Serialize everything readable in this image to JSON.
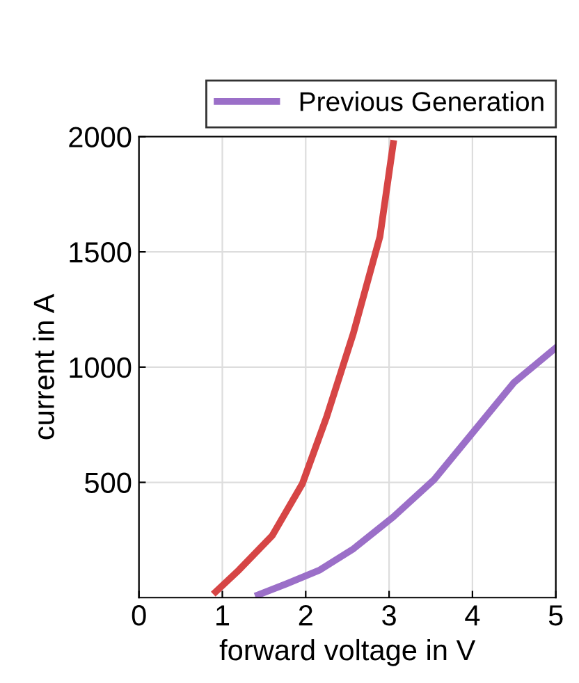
{
  "chart_data": {
    "type": "line",
    "xlabel": "forward voltage in V",
    "ylabel": "current in A",
    "xlim": [
      0,
      5
    ],
    "xticks": [
      0,
      1,
      2,
      3,
      4,
      5
    ],
    "ylim": [
      0,
      2000
    ],
    "yticks": [
      500,
      1000,
      1500,
      2000
    ],
    "grid": true,
    "legend": "top right",
    "marker": "none",
    "line_style": "solid",
    "series": [
      {
        "name": "Previous Generation",
        "color": "#9b6fc8",
        "x": [
          1.43,
          1.77,
          2.17,
          2.57,
          3.05,
          3.54,
          4.02,
          4.5,
          5.0
        ],
        "values": [
          12,
          60,
          120,
          211,
          350,
          512,
          723,
          934,
          1084
        ]
      },
      {
        "color": "#d64545",
        "x": [
          0.92,
          1.2,
          1.6,
          1.96,
          2.25,
          2.57,
          2.89,
          3.05
        ],
        "values": [
          25,
          120,
          270,
          494,
          783,
          1145,
          1566,
          1970
        ]
      }
    ]
  }
}
